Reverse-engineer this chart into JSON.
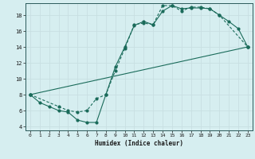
{
  "xlabel": "Humidex (Indice chaleur)",
  "bg_color": "#d6eef0",
  "grid_color": "#c8dfe2",
  "line_color": "#1a6b5a",
  "xlim": [
    -0.5,
    23.5
  ],
  "ylim": [
    3.5,
    19.5
  ],
  "xticks": [
    0,
    1,
    2,
    3,
    4,
    5,
    6,
    7,
    8,
    9,
    10,
    11,
    12,
    13,
    14,
    15,
    16,
    17,
    18,
    19,
    20,
    21,
    22,
    23
  ],
  "yticks": [
    4,
    6,
    8,
    10,
    12,
    14,
    16,
    18
  ],
  "line1_x": [
    0,
    1,
    2,
    3,
    4,
    5,
    6,
    7,
    8,
    9,
    10,
    11,
    12,
    13,
    14,
    15,
    16,
    17,
    18,
    19,
    20,
    21,
    22,
    23
  ],
  "line1_y": [
    8.0,
    7.0,
    6.5,
    6.0,
    5.8,
    4.8,
    4.5,
    4.5,
    8.0,
    11.5,
    14.0,
    16.7,
    17.2,
    16.8,
    18.5,
    19.2,
    18.8,
    18.9,
    18.9,
    18.8,
    18.0,
    17.2,
    16.3,
    14.0
  ],
  "line2_x": [
    0,
    3,
    4,
    5,
    6,
    7,
    8,
    9,
    10,
    11,
    12,
    13,
    14,
    15,
    16,
    17,
    18,
    19,
    20,
    23
  ],
  "line2_y": [
    8.0,
    6.5,
    6.0,
    5.8,
    6.0,
    7.5,
    8.0,
    11.0,
    13.8,
    16.8,
    17.0,
    16.8,
    19.2,
    19.2,
    18.5,
    19.0,
    19.0,
    18.8,
    18.0,
    14.0
  ],
  "line3_x": [
    0,
    23
  ],
  "line3_y": [
    8.0,
    14.0
  ]
}
